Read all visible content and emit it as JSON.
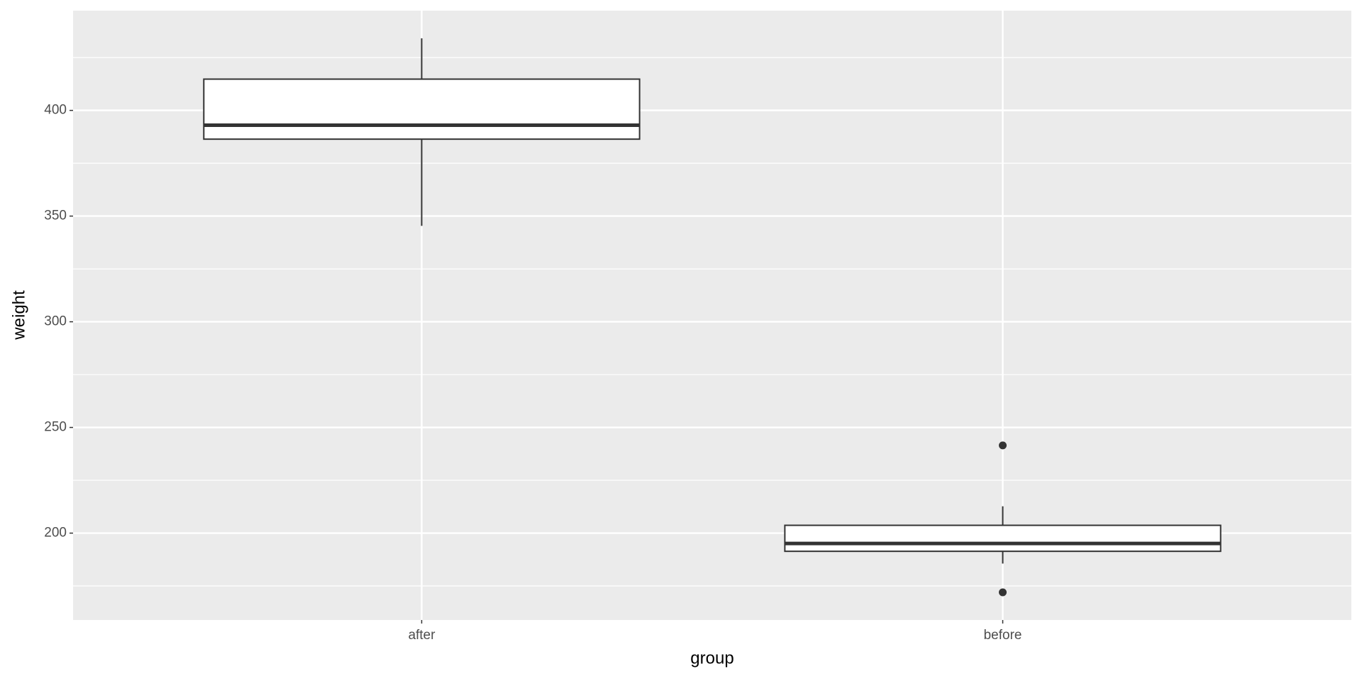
{
  "chart_data": {
    "type": "box",
    "x_label": "group",
    "y_label": "weight",
    "categories": [
      "after",
      "before"
    ],
    "boxes": [
      {
        "whislo": 345.4,
        "q1": 386.4,
        "med": 393,
        "q3": 414.8,
        "whishi": 434.1,
        "outliers": []
      },
      {
        "whislo": 185.6,
        "q1": 191.4,
        "med": 195.1,
        "q3": 203.7,
        "whishi": 212.7,
        "outliers": [
          241.5,
          172
        ]
      }
    ],
    "ylim": [
      158.9,
      447.2
    ],
    "yticks": [
      200,
      250,
      300,
      350,
      400
    ],
    "minor_yticks": [
      175,
      225,
      275,
      325,
      375,
      425
    ],
    "grid": true,
    "box_fill": "#ffffff",
    "line_color": "#333333",
    "panel_color": "#ebebeb"
  }
}
